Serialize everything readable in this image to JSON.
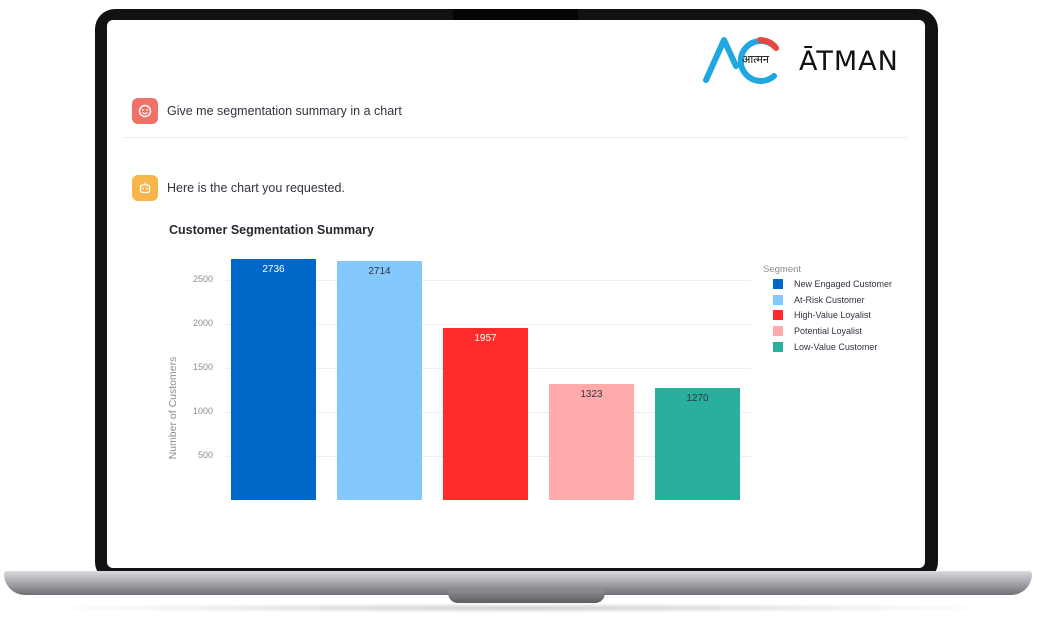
{
  "brand": {
    "devanagari": "आत्मन",
    "wordmark": "ĀTMAN",
    "accent": "#1ea7e1",
    "accent2": "#e8463f"
  },
  "chat": {
    "user_message": "Give me segmentation summary in a chart",
    "assistant_message": "Here is the chart you requested."
  },
  "chart_data": {
    "type": "bar",
    "title": "Customer Segmentation Summary",
    "ylabel": "Number of Customers",
    "xlabel": "",
    "ylim": [
      0,
      2800
    ],
    "yticks": [
      500,
      1000,
      1500,
      2000,
      2500
    ],
    "grid": true,
    "legend_title": "Segment",
    "legend_position": "right",
    "categories": [
      "New Engaged Customer",
      "At-Risk Customer",
      "High-Value Loyalist",
      "Potential Loyalist",
      "Low-Value Customer"
    ],
    "values": [
      2736,
      2714,
      1957,
      1323,
      1270
    ],
    "colors": [
      "#0068c9",
      "#83c9ff",
      "#ff2b2b",
      "#ffabab",
      "#29b09d"
    ],
    "label_colors": [
      "#ffffff",
      "#31333f",
      "#ffffff",
      "#31333f",
      "#31333f"
    ]
  }
}
